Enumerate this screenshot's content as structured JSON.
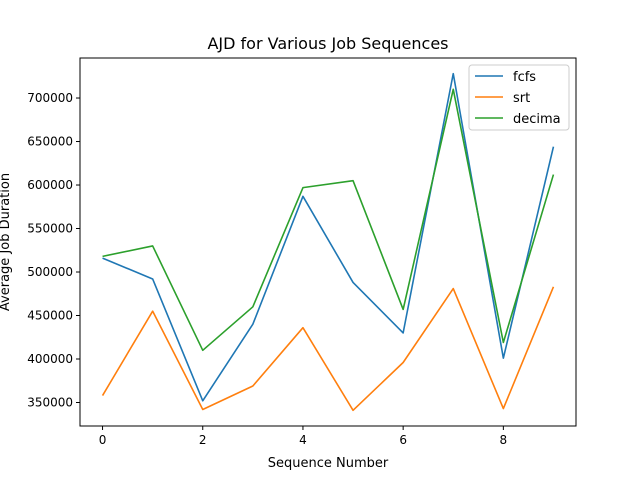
{
  "chart_data": {
    "type": "line",
    "title": "AJD for Various Job Sequences",
    "xlabel": "Sequence Number",
    "ylabel": "Average Job Duration",
    "x": [
      0,
      1,
      2,
      3,
      4,
      5,
      6,
      7,
      8,
      9
    ],
    "xlim": [
      -0.45,
      9.45
    ],
    "ylim": [
      323000,
      746000
    ],
    "xticks": [
      0,
      2,
      4,
      6,
      8
    ],
    "yticks": [
      350000,
      400000,
      450000,
      500000,
      550000,
      600000,
      650000,
      700000
    ],
    "grid": false,
    "legend_position": "top-right",
    "series": [
      {
        "name": "fcfs",
        "color": "#1f77b4",
        "values": [
          516000,
          492000,
          352000,
          440000,
          587000,
          488000,
          430000,
          728000,
          401000,
          644000
        ]
      },
      {
        "name": "srt",
        "color": "#ff7f0e",
        "values": [
          358000,
          455000,
          342000,
          369000,
          436000,
          341000,
          396000,
          481000,
          343000,
          483000
        ]
      },
      {
        "name": "decima",
        "color": "#2ca02c",
        "values": [
          518000,
          530000,
          410000,
          460000,
          597000,
          605000,
          457000,
          710000,
          419000,
          612000
        ]
      }
    ]
  }
}
